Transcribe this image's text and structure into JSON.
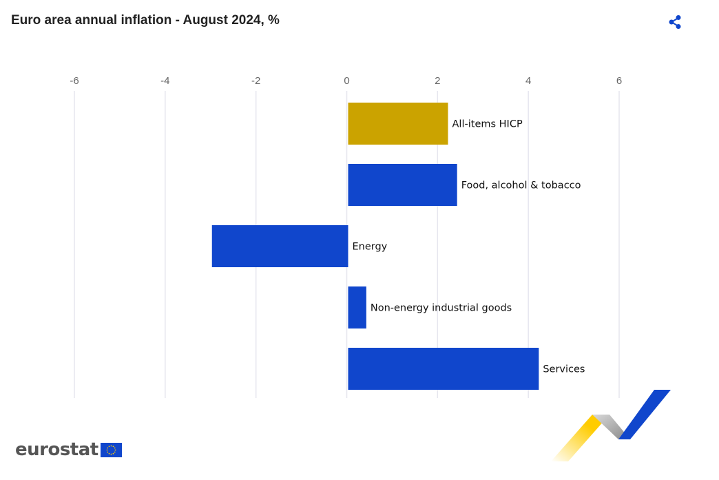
{
  "title": "Euro area annual inflation - August 2024, %",
  "share_icon": "share-icon",
  "logo": {
    "text": "eurostat",
    "flag_icon": "eu-flag-icon"
  },
  "colors": {
    "highlight": "#CBA300",
    "bar": "#1046CC",
    "grid": "#E6E6EE",
    "tick": "#666666"
  },
  "chart_data": {
    "type": "bar",
    "orientation": "horizontal",
    "title": "Euro area annual inflation - August 2024, %",
    "xlim": [
      -6,
      6
    ],
    "ticks": [
      -6,
      -4,
      -2,
      0,
      2,
      4,
      6
    ],
    "grid": true,
    "categories": [
      "All-items HICP",
      "Food, alcohol & tobacco",
      "Energy",
      "Non-energy industrial goods",
      "Services"
    ],
    "values": [
      2.2,
      2.4,
      -3.0,
      0.4,
      4.2
    ],
    "highlight_category": "All-items HICP"
  }
}
